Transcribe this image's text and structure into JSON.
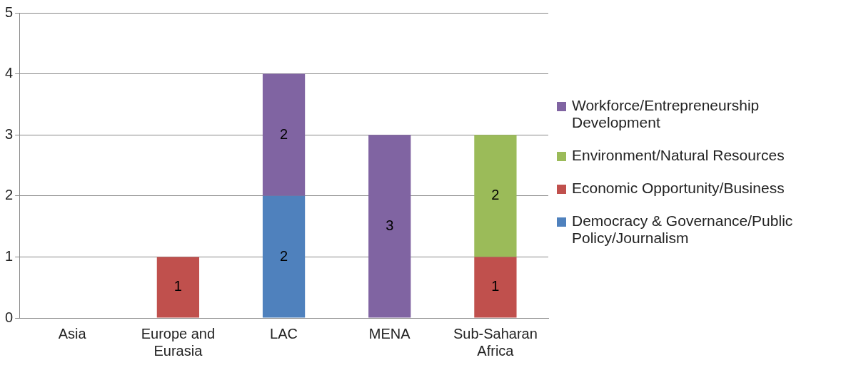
{
  "chart_data": {
    "type": "bar",
    "stacked": true,
    "categories": [
      "Asia",
      "Europe and Eurasia",
      "LAC",
      "MENA",
      "Sub-Saharan Africa"
    ],
    "series": [
      {
        "name": "Democracy & Governance/Public Policy/Journalism",
        "color": "#4f81bd",
        "values": [
          null,
          null,
          2,
          null,
          null
        ]
      },
      {
        "name": "Economic Opportunity/Business",
        "color": "#c0504d",
        "values": [
          null,
          1,
          null,
          null,
          1
        ]
      },
      {
        "name": "Environment/Natural Resources",
        "color": "#9bbb59",
        "values": [
          null,
          null,
          null,
          null,
          2
        ]
      },
      {
        "name": "Workforce/Entrepreneurship Development",
        "color": "#8064a2",
        "values": [
          null,
          null,
          2,
          3,
          null
        ]
      }
    ],
    "ylim": [
      0,
      5
    ],
    "yticks": [
      0,
      1,
      2,
      3,
      4,
      5
    ],
    "grid": "y",
    "legend": "right",
    "data_labels": true
  }
}
